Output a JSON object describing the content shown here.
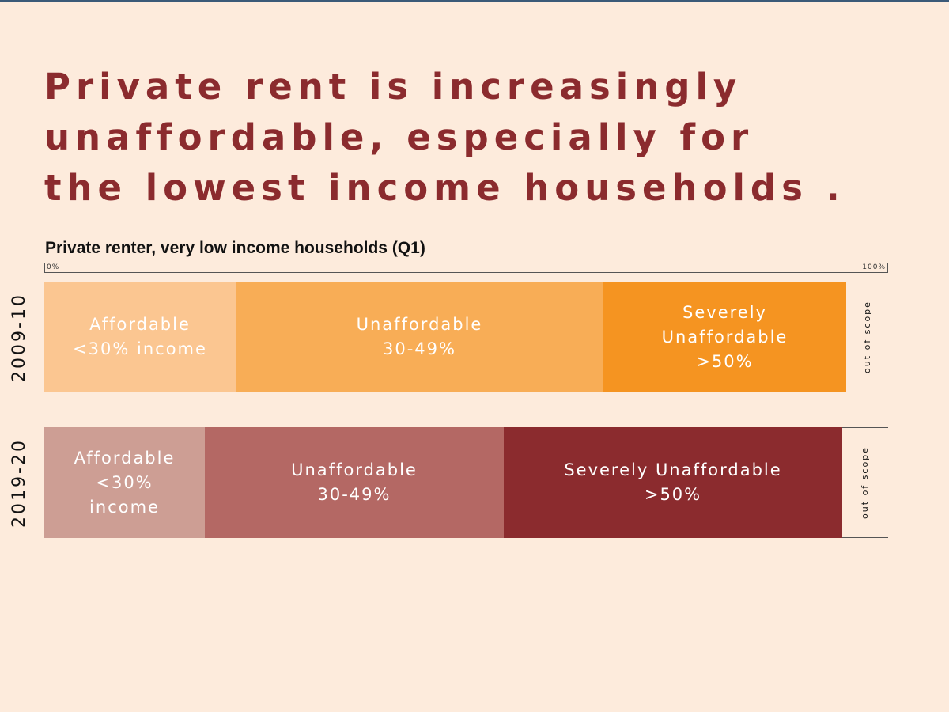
{
  "title_lines": [
    "Private rent is increasingly",
    "unaffordable, especially for",
    "the lowest income households ."
  ],
  "subtitle": "Private renter, very low income households (Q1)",
  "chart_data": {
    "type": "bar",
    "stacked": true,
    "orientation": "horizontal",
    "scale_labels": [
      "0%",
      "100%"
    ],
    "xlim": [
      0,
      100
    ],
    "categories": [
      "2009-10",
      "2019-20"
    ],
    "series": [
      {
        "name": "Affordable <30% income",
        "values": [
          22.7,
          19.0
        ]
      },
      {
        "name": "Unaffordable 30-49%",
        "values": [
          43.6,
          35.4
        ]
      },
      {
        "name": "Severely Unaffordable >50%",
        "values": [
          28.8,
          40.1
        ]
      },
      {
        "name": "out of scope",
        "values": [
          4.9,
          5.5
        ]
      }
    ],
    "segment_labels": [
      [
        "Affordable\n<30% income",
        "Unaffordable\n30-49%",
        "Severely\nUnaffordable\n>50%",
        "out of scope"
      ],
      [
        "Affordable\n<30%\nincome",
        "Unaffordable\n30-49%",
        "Severely Unaffordable\n>50%",
        "out of scope"
      ]
    ],
    "colors": [
      [
        "#fbc691",
        "#f8ad56",
        "#f59421",
        "#fdebdc"
      ],
      [
        "#cd9e94",
        "#b46864",
        "#8b2b2e",
        "#fdebdc"
      ]
    ],
    "grid": false,
    "legend": "none"
  }
}
